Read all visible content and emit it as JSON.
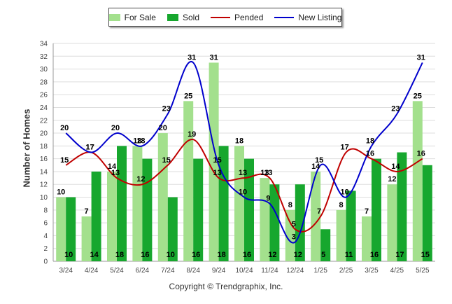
{
  "chart_data": {
    "type": "bar",
    "categories": [
      "3/24",
      "4/24",
      "5/24",
      "6/24",
      "7/24",
      "8/24",
      "9/24",
      "10/24",
      "11/24",
      "12/24",
      "1/25",
      "2/25",
      "3/25",
      "4/25",
      "5/25"
    ],
    "ylabel": "Number of Homes",
    "xlabel": "",
    "ylim": [
      0,
      34
    ],
    "yticks": [
      0,
      2,
      4,
      6,
      8,
      10,
      12,
      14,
      16,
      18,
      20,
      22,
      24,
      26,
      28,
      30,
      32,
      34
    ],
    "grid": true,
    "legend_position": "top-center",
    "series": [
      {
        "name": "For Sale",
        "kind": "bar",
        "color": "#a3e08d",
        "values": [
          10,
          7,
          14,
          18,
          20,
          25,
          31,
          18,
          13,
          8,
          14,
          8,
          7,
          12,
          25
        ]
      },
      {
        "name": "Sold",
        "kind": "bar",
        "color": "#17a72e",
        "values": [
          10,
          14,
          18,
          16,
          10,
          16,
          18,
          16,
          12,
          12,
          5,
          11,
          16,
          17,
          15
        ]
      },
      {
        "name": "Pended",
        "kind": "line",
        "color": "#c00000",
        "values": [
          15,
          17,
          13,
          12,
          15,
          19,
          13,
          13,
          13,
          5,
          7,
          17,
          16,
          14,
          16
        ]
      },
      {
        "name": "New Listing",
        "kind": "line",
        "color": "#0000cc",
        "values": [
          20,
          17,
          20,
          18,
          23,
          31,
          15,
          10,
          9,
          3,
          15,
          10,
          18,
          23,
          31
        ]
      }
    ]
  },
  "copyright": "Copyright © Trendgraphix, Inc."
}
